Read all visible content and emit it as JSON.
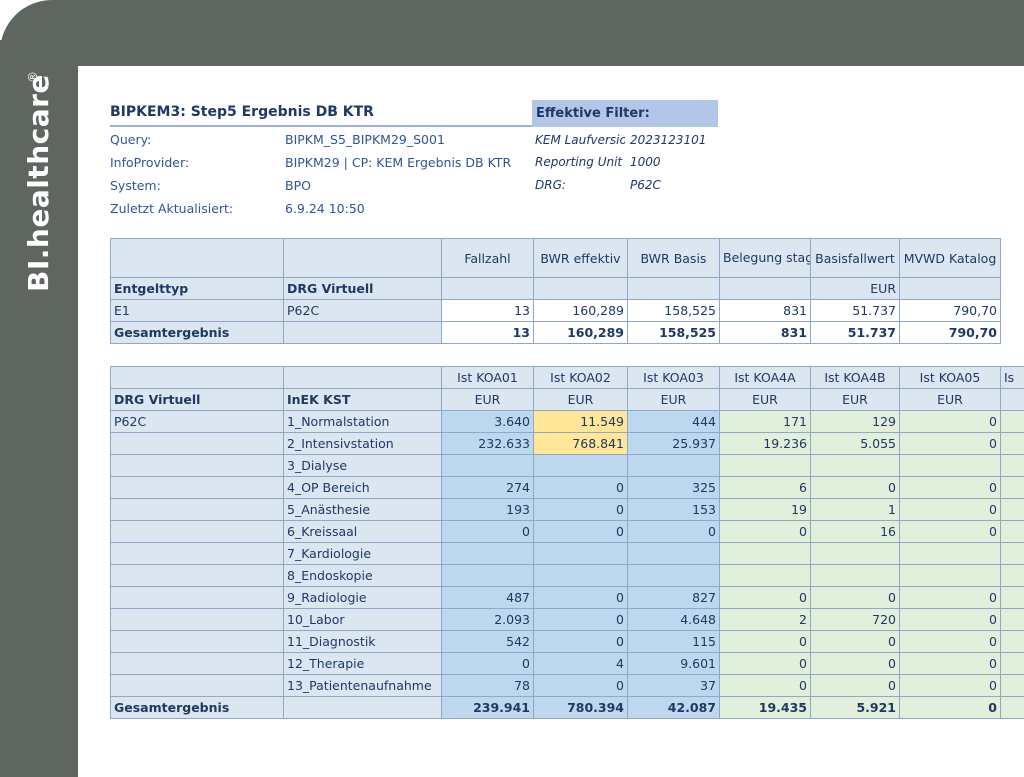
{
  "brand": {
    "name": "BI.healthcare",
    "reg": "®"
  },
  "report": {
    "title": "BIPKEM3: Step5 Ergebnis DB KTR",
    "meta": [
      {
        "label": "Query:",
        "value": "BIPKM_S5_BIPKM29_S001"
      },
      {
        "label": "InfoProvider:",
        "value": "BIPKM29 | CP: KEM Ergebnis DB KTR"
      },
      {
        "label": "System:",
        "value": "BPO"
      },
      {
        "label": "Zuletzt Aktualisiert:",
        "value": "6.9.24 10:50"
      }
    ],
    "filter_title": "Effektive Filter:",
    "filters": [
      {
        "label": "KEM Laufversion",
        "value": "2023123101"
      },
      {
        "label": "Reporting Unit",
        "value": "1000"
      },
      {
        "label": "DRG:",
        "value": "P62C"
      }
    ]
  },
  "table1": {
    "col_headers": [
      "Fallzahl",
      "BWR effektiv",
      "BWR Basis",
      "Belegung stage",
      "Basisfallwert",
      "MVWD Katalog"
    ],
    "row_headers": [
      "Entgelttyp",
      "DRG Virtuell"
    ],
    "units": [
      "",
      "",
      "",
      "",
      "EUR",
      ""
    ],
    "rows": [
      {
        "c1": "E1",
        "c2": "P62C",
        "values": [
          "13",
          "160,289",
          "158,525",
          "831",
          "51.737",
          "790,70"
        ]
      }
    ],
    "total": {
      "label": "Gesamtergebnis",
      "values": [
        "13",
        "160,289",
        "158,525",
        "831",
        "51.737",
        "790,70"
      ]
    }
  },
  "table2": {
    "col_headers": [
      "Ist KOA01",
      "Ist KOA02",
      "Ist KOA03",
      "Ist KOA4A",
      "Ist KOA4B",
      "Ist KOA05",
      "Is"
    ],
    "row_headers": [
      "DRG Virtuell",
      "InEK KST"
    ],
    "units": [
      "EUR",
      "EUR",
      "EUR",
      "EUR",
      "EUR",
      "EUR",
      ""
    ],
    "drg": "P62C",
    "rows": [
      {
        "kst": "1_Normalstation",
        "values": [
          "3.640",
          "11.549",
          "444",
          "171",
          "129",
          "0"
        ]
      },
      {
        "kst": "2_Intensivstation",
        "values": [
          "232.633",
          "768.841",
          "25.937",
          "19.236",
          "5.055",
          "0"
        ]
      },
      {
        "kst": "3_Dialyse",
        "values": [
          "",
          "",
          "",
          "",
          "",
          ""
        ]
      },
      {
        "kst": "4_OP Bereich",
        "values": [
          "274",
          "0",
          "325",
          "6",
          "0",
          "0"
        ]
      },
      {
        "kst": "5_Anästhesie",
        "values": [
          "193",
          "0",
          "153",
          "19",
          "1",
          "0"
        ]
      },
      {
        "kst": "6_Kreissaal",
        "values": [
          "0",
          "0",
          "0",
          "0",
          "16",
          "0"
        ]
      },
      {
        "kst": "7_Kardiologie",
        "values": [
          "",
          "",
          "",
          "",
          "",
          ""
        ]
      },
      {
        "kst": "8_Endoskopie",
        "values": [
          "",
          "",
          "",
          "",
          "",
          ""
        ]
      },
      {
        "kst": "9_Radiologie",
        "values": [
          "487",
          "0",
          "827",
          "0",
          "0",
          "0"
        ]
      },
      {
        "kst": "10_Labor",
        "values": [
          "2.093",
          "0",
          "4.648",
          "2",
          "720",
          "0"
        ]
      },
      {
        "kst": "11_Diagnostik",
        "values": [
          "542",
          "0",
          "115",
          "0",
          "0",
          "0"
        ]
      },
      {
        "kst": "12_Therapie",
        "values": [
          "0",
          "4",
          "9.601",
          "0",
          "0",
          "0"
        ]
      },
      {
        "kst": "13_Patientenaufnahme",
        "values": [
          "78",
          "0",
          "37",
          "0",
          "0",
          "0"
        ]
      }
    ],
    "total": {
      "label": "Gesamtergebnis",
      "values": [
        "239.941",
        "780.394",
        "42.087",
        "19.435",
        "5.921",
        "0"
      ]
    }
  },
  "colors": {
    "frame": "#5f655f",
    "header_fill": "#dce6f1",
    "koa_blue": "#bdd7ee",
    "koa_green": "#e2efda",
    "highlight_yellow": "#ffe699",
    "text": "#1f3864"
  }
}
